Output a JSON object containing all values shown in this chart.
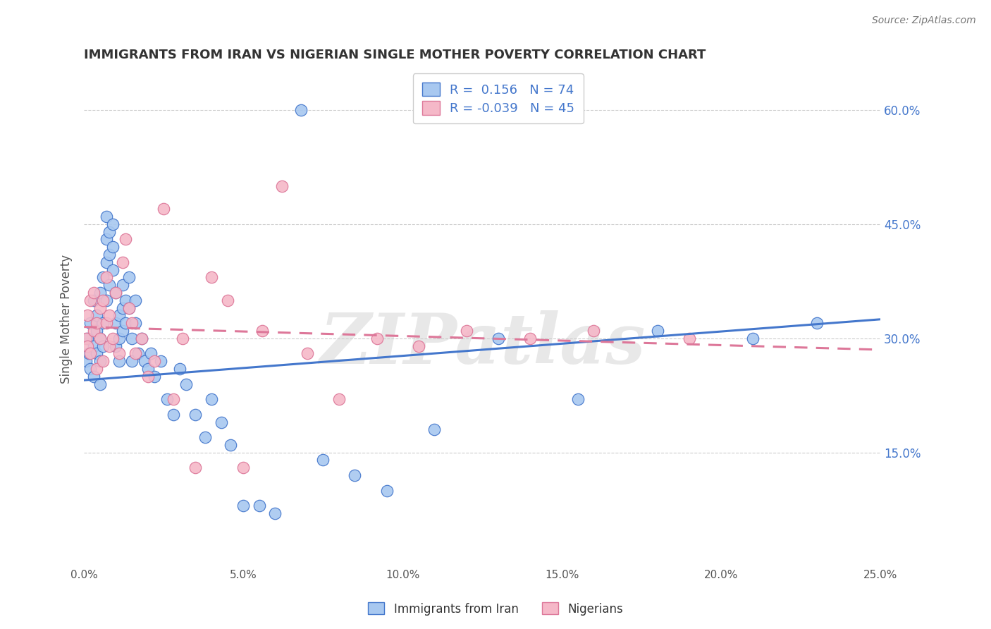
{
  "title": "IMMIGRANTS FROM IRAN VS NIGERIAN SINGLE MOTHER POVERTY CORRELATION CHART",
  "source": "Source: ZipAtlas.com",
  "ylabel": "Single Mother Poverty",
  "y_ticks": [
    "15.0%",
    "30.0%",
    "45.0%",
    "60.0%"
  ],
  "y_tick_vals": [
    0.15,
    0.3,
    0.45,
    0.6
  ],
  "xlim": [
    0.0,
    0.25
  ],
  "ylim": [
    0.0,
    0.65
  ],
  "legend_iran_R": "0.156",
  "legend_iran_N": "74",
  "legend_nigeria_R": "-0.039",
  "legend_nigeria_N": "45",
  "iran_color": "#A8C8F0",
  "nigeria_color": "#F5B8C8",
  "iran_line_color": "#4477CC",
  "nigeria_line_color": "#DD7799",
  "watermark": "ZIPatlas",
  "background_color": "#FFFFFF",
  "iran_trend_x0": 0.0,
  "iran_trend_y0": 0.245,
  "iran_trend_x1": 0.25,
  "iran_trend_y1": 0.325,
  "nigeria_trend_x0": 0.0,
  "nigeria_trend_y0": 0.315,
  "nigeria_trend_x1": 0.25,
  "nigeria_trend_y1": 0.285,
  "iran_scatter_x": [
    0.0005,
    0.001,
    0.0015,
    0.002,
    0.002,
    0.003,
    0.003,
    0.003,
    0.004,
    0.004,
    0.004,
    0.005,
    0.005,
    0.005,
    0.005,
    0.006,
    0.006,
    0.006,
    0.007,
    0.007,
    0.007,
    0.007,
    0.008,
    0.008,
    0.008,
    0.009,
    0.009,
    0.009,
    0.01,
    0.01,
    0.01,
    0.011,
    0.011,
    0.011,
    0.012,
    0.012,
    0.012,
    0.013,
    0.013,
    0.014,
    0.014,
    0.015,
    0.015,
    0.016,
    0.016,
    0.017,
    0.018,
    0.019,
    0.02,
    0.021,
    0.022,
    0.024,
    0.026,
    0.028,
    0.03,
    0.032,
    0.035,
    0.038,
    0.04,
    0.043,
    0.046,
    0.05,
    0.055,
    0.06,
    0.068,
    0.075,
    0.085,
    0.095,
    0.11,
    0.13,
    0.155,
    0.18,
    0.21,
    0.23
  ],
  "iran_scatter_y": [
    0.27,
    0.3,
    0.28,
    0.32,
    0.26,
    0.35,
    0.29,
    0.25,
    0.33,
    0.31,
    0.28,
    0.36,
    0.3,
    0.27,
    0.24,
    0.38,
    0.32,
    0.29,
    0.46,
    0.43,
    0.4,
    0.35,
    0.44,
    0.41,
    0.37,
    0.45,
    0.42,
    0.39,
    0.36,
    0.32,
    0.29,
    0.33,
    0.3,
    0.27,
    0.37,
    0.34,
    0.31,
    0.35,
    0.32,
    0.38,
    0.34,
    0.3,
    0.27,
    0.35,
    0.32,
    0.28,
    0.3,
    0.27,
    0.26,
    0.28,
    0.25,
    0.27,
    0.22,
    0.2,
    0.26,
    0.24,
    0.2,
    0.17,
    0.22,
    0.19,
    0.16,
    0.08,
    0.08,
    0.07,
    0.6,
    0.14,
    0.12,
    0.1,
    0.18,
    0.3,
    0.22,
    0.31,
    0.3,
    0.32
  ],
  "nigeria_scatter_x": [
    0.0005,
    0.001,
    0.001,
    0.002,
    0.002,
    0.003,
    0.003,
    0.004,
    0.004,
    0.005,
    0.005,
    0.006,
    0.006,
    0.007,
    0.007,
    0.008,
    0.008,
    0.009,
    0.01,
    0.011,
    0.012,
    0.013,
    0.014,
    0.015,
    0.016,
    0.018,
    0.02,
    0.022,
    0.025,
    0.028,
    0.031,
    0.035,
    0.04,
    0.045,
    0.05,
    0.056,
    0.062,
    0.07,
    0.08,
    0.092,
    0.105,
    0.12,
    0.14,
    0.16,
    0.19
  ],
  "nigeria_scatter_y": [
    0.3,
    0.33,
    0.29,
    0.35,
    0.28,
    0.31,
    0.36,
    0.32,
    0.26,
    0.34,
    0.3,
    0.27,
    0.35,
    0.32,
    0.38,
    0.29,
    0.33,
    0.3,
    0.36,
    0.28,
    0.4,
    0.43,
    0.34,
    0.32,
    0.28,
    0.3,
    0.25,
    0.27,
    0.47,
    0.22,
    0.3,
    0.13,
    0.38,
    0.35,
    0.13,
    0.31,
    0.5,
    0.28,
    0.22,
    0.3,
    0.29,
    0.31,
    0.3,
    0.31,
    0.3
  ]
}
